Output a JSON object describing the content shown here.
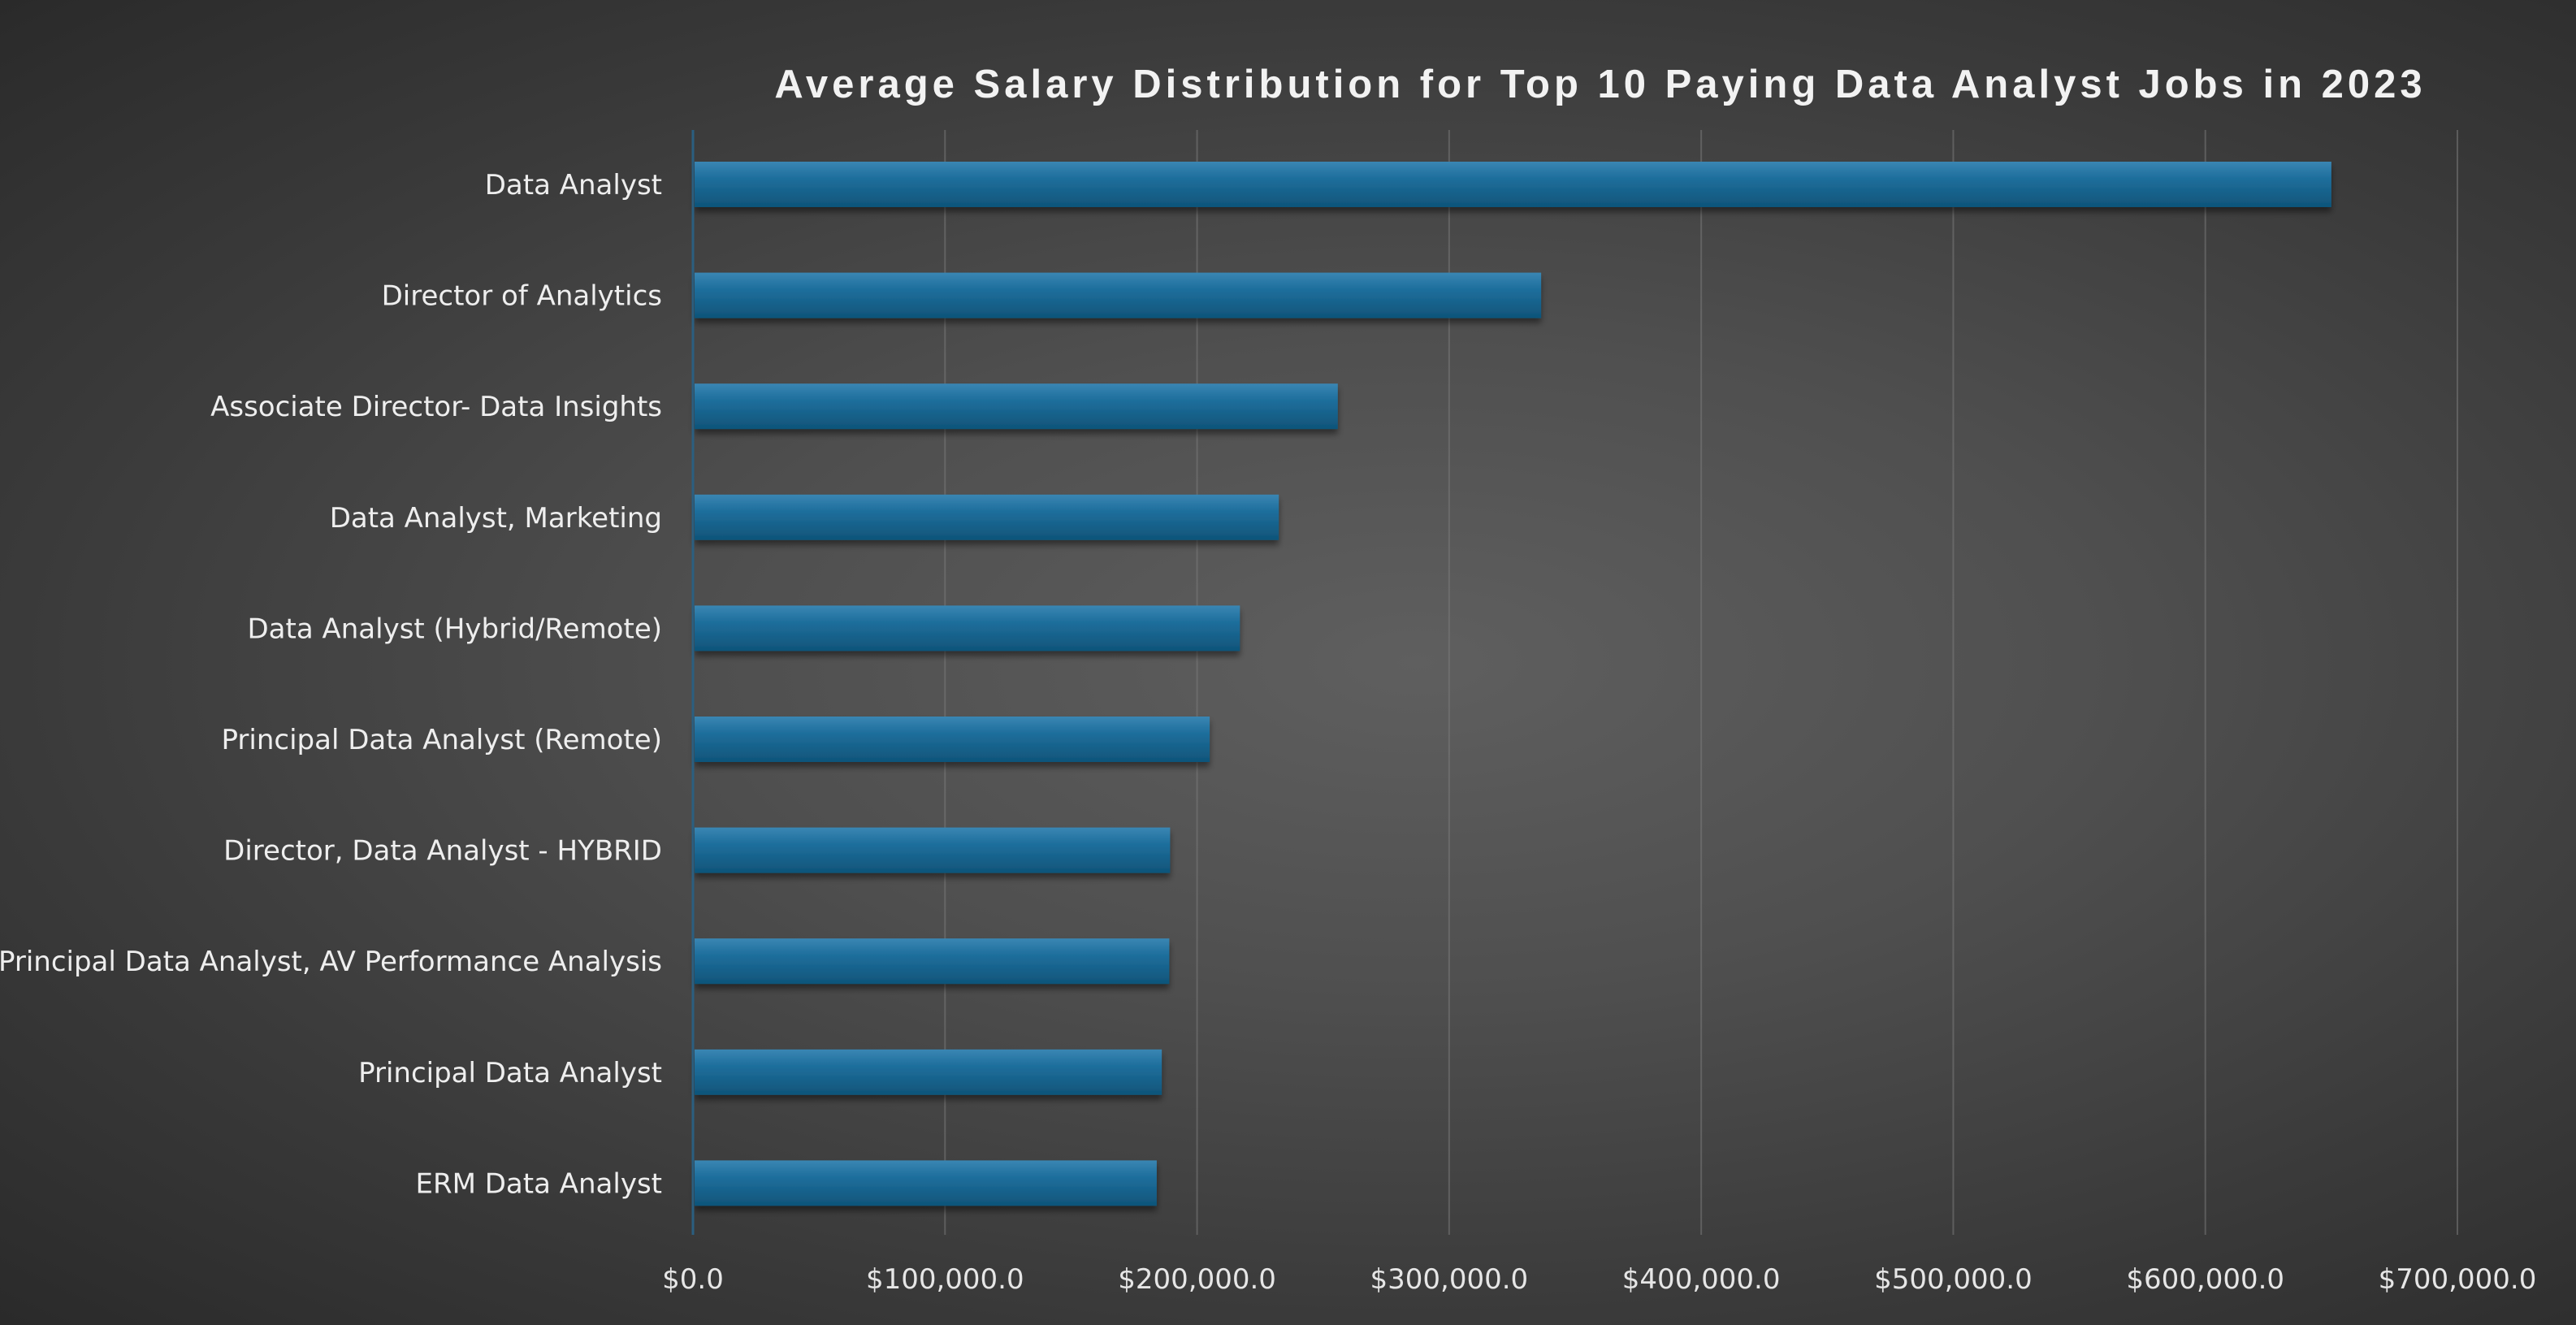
{
  "chart_data": {
    "type": "bar",
    "orientation": "horizontal",
    "title": "Average Salary Distribution for Top 10 Paying Data Analyst Jobs in 2023",
    "xlabel": "",
    "ylabel": "",
    "categories": [
      "Data Analyst",
      "Director of Analytics",
      "Associate Director- Data Insights",
      "Data Analyst, Marketing",
      "Data Analyst (Hybrid/Remote)",
      "Principal Data Analyst (Remote)",
      "Director, Data Analyst - HYBRID",
      "Principal Data Analyst, AV Performance Analysis",
      "Principal Data Analyst",
      "ERM Data Analyst"
    ],
    "values": [
      650000,
      336500,
      255829.5,
      232423,
      217000,
      205000,
      189309,
      189000,
      186000,
      184000
    ],
    "xlim": [
      0,
      700000
    ],
    "xticks": [
      0,
      100000,
      200000,
      300000,
      400000,
      500000,
      600000,
      700000
    ],
    "xtick_labels": [
      "$0.0",
      "$100,000.0",
      "$200,000.0",
      "$300,000.0",
      "$400,000.0",
      "$500,000.0",
      "$600,000.0",
      "$700,000.0"
    ],
    "grid": "vertical",
    "legend": "none",
    "bar_color": "#1f6a96"
  }
}
